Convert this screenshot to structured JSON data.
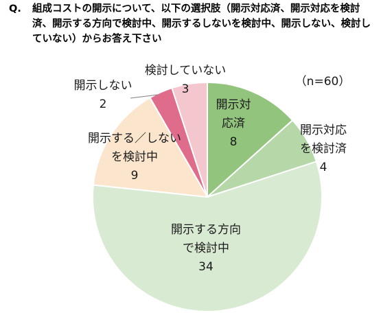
{
  "question": {
    "prefix": "Q.",
    "text": "組成コストの開示について、以下の選択肢（開示対応済、開示対応を検討済、開示する方向で検討中、開示するしないを検討中、開示しない、検討していない）からお答え下さい"
  },
  "chart_data": {
    "type": "pie",
    "sample_note": "（n=60）",
    "start": "12 o'clock",
    "direction": "clockwise",
    "slices": [
      {
        "label_lines": [
          "開示対",
          "応済"
        ],
        "value": 8,
        "color": "#93c47d"
      },
      {
        "label_lines": [
          "開示対応",
          "を検討済"
        ],
        "value": 4,
        "color": "#b6d7a8"
      },
      {
        "label_lines": [
          "開示する方向",
          "で検討中"
        ],
        "value": 34,
        "color": "#d9ead3"
      },
      {
        "label_lines": [
          "開示する／しない",
          "を検討中"
        ],
        "value": 9,
        "color": "#fce5cd"
      },
      {
        "label_lines": [
          "開示しない"
        ],
        "value": 2,
        "color": "#e06c8c"
      },
      {
        "label_lines": [
          "検討していない"
        ],
        "value": 3,
        "color": "#f4c7cf"
      }
    ]
  }
}
